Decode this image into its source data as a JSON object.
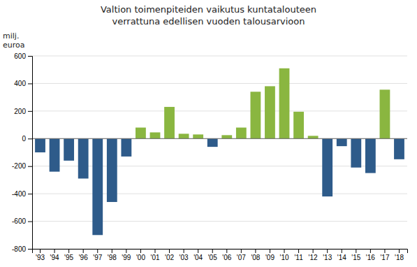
{
  "chart_data": {
    "type": "bar",
    "title": "Valtion toimenpiteiden vaikutus kuntatalouteen",
    "subtitle": "verrattuna edellisen vuoden talousarvioon",
    "ylabel": "milj.\neuroa",
    "categories": [
      "'93",
      "'94",
      "'95",
      "'96",
      "'97",
      "'98",
      "'99",
      "'00",
      "'01",
      "'02",
      "'03",
      "'04",
      "'05",
      "'06",
      "'07",
      "'08",
      "'09",
      "'10",
      "'11",
      "'12",
      "'13",
      "'14",
      "'15",
      "'16",
      "'17",
      "'18"
    ],
    "values": [
      -100,
      -240,
      -160,
      -290,
      -700,
      -460,
      -130,
      80,
      45,
      230,
      35,
      30,
      -60,
      25,
      80,
      340,
      380,
      510,
      195,
      20,
      -420,
      -55,
      -210,
      -250,
      355,
      -150
    ],
    "colors": [
      "#2e5b8a",
      "#2e5b8a",
      "#2e5b8a",
      "#2e5b8a",
      "#2e5b8a",
      "#2e5b8a",
      "#2e5b8a",
      "#8ab640",
      "#8ab640",
      "#8ab640",
      "#8ab640",
      "#8ab640",
      "#2e5b8a",
      "#8ab640",
      "#8ab640",
      "#8ab640",
      "#8ab640",
      "#8ab640",
      "#8ab640",
      "#8ab640",
      "#2e5b8a",
      "#2e5b8a",
      "#2e5b8a",
      "#2e5b8a",
      "#8ab640",
      "#2e5b8a"
    ],
    "ylim": [
      -800,
      600
    ],
    "yticks": [
      -800,
      -600,
      -400,
      -200,
      0,
      200,
      400,
      600
    ],
    "grid": true
  }
}
